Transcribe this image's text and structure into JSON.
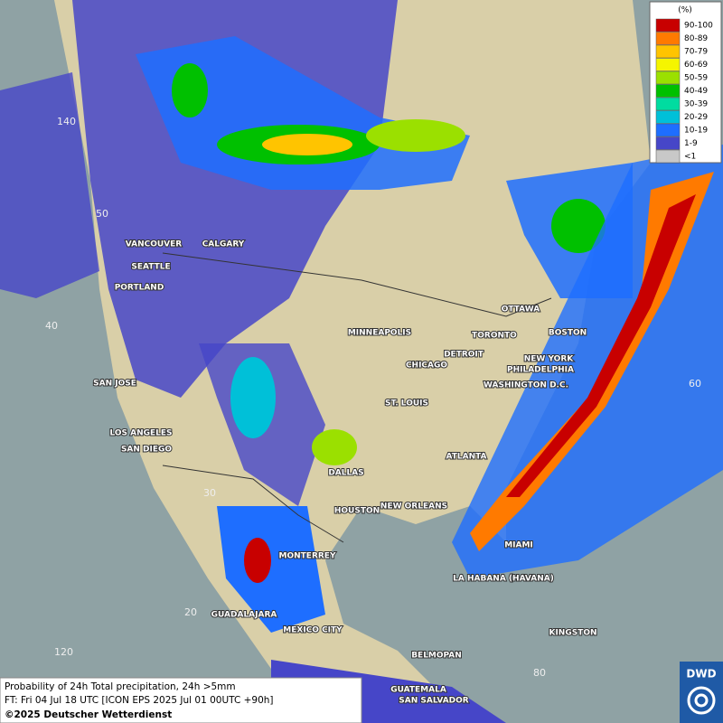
{
  "legend": {
    "title": "(%)",
    "items": [
      {
        "label": "90-100",
        "color": "#c80000"
      },
      {
        "label": "80-89",
        "color": "#ff7a00"
      },
      {
        "label": "70-79",
        "color": "#ffc400"
      },
      {
        "label": "60-69",
        "color": "#f5f500"
      },
      {
        "label": "50-59",
        "color": "#9be000"
      },
      {
        "label": "40-49",
        "color": "#00c000"
      },
      {
        "label": "30-39",
        "color": "#00dca0"
      },
      {
        "label": "20-29",
        "color": "#00c0d8"
      },
      {
        "label": "10-19",
        "color": "#1e6eff"
      },
      {
        "label": "1-9",
        "color": "#4646c8"
      },
      {
        "label": "<1",
        "color": "#c8c8c8"
      }
    ]
  },
  "cities": [
    "VANCOUVER",
    "CALGARY",
    "SEATTLE",
    "PORTLAND",
    "MINNEAPOLIS",
    "OTTAWA",
    "TORONTO",
    "BOSTON",
    "DETROIT",
    "NEW YORK",
    "CHICAGO",
    "PHILADELPHIA",
    "SAN JOSE",
    "WASHINGTON D.C.",
    "ST. LOUIS",
    "LOS ANGELES",
    "SAN DIEGO",
    "ATLANTA",
    "DALLAS",
    "NEW ORLEANS",
    "HOUSTON",
    "MIAMI",
    "MONTERREY",
    "LA HABANA (HAVANA)",
    "GUADALAJARA",
    "MEXICO CITY",
    "KINGSTON",
    "BELMOPAN",
    "GUATEMALA",
    "SAN SALVADOR"
  ],
  "grid_labels": [
    "140",
    "50",
    "40",
    "30",
    "20",
    "120",
    "80",
    "60"
  ],
  "caption": {
    "line1": "Probability of 24h Total precipitation, 24h >5mm",
    "line2": "FT: Fri 04 Jul 18 UTC [ICON EPS 2025 Jul 01 00UTC +90h]",
    "line3": "©2025 Deutscher Wetterdienst"
  },
  "logo": "DWD"
}
